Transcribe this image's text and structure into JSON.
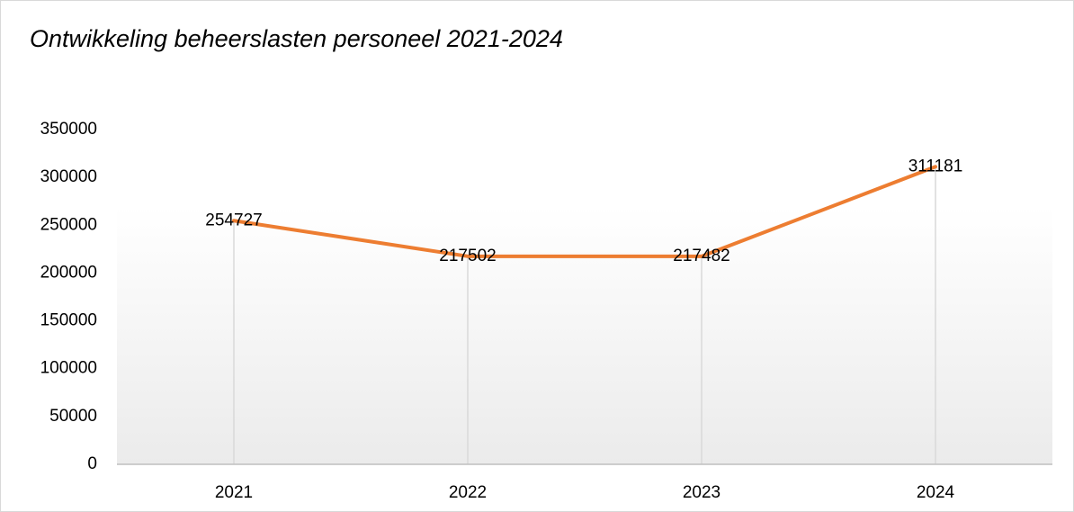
{
  "chart_data": {
    "type": "line",
    "title": "Ontwikkeling beheerslasten personeel 2021-2024",
    "categories": [
      "2021",
      "2022",
      "2023",
      "2024"
    ],
    "values": [
      254727,
      217502,
      217482,
      311181
    ],
    "color": "#ed7d31",
    "ylim": [
      0,
      350000
    ],
    "yticks": [
      0,
      50000,
      100000,
      150000,
      200000,
      250000,
      300000,
      350000
    ],
    "grid": false,
    "drop_lines": true,
    "data_labels": true
  }
}
